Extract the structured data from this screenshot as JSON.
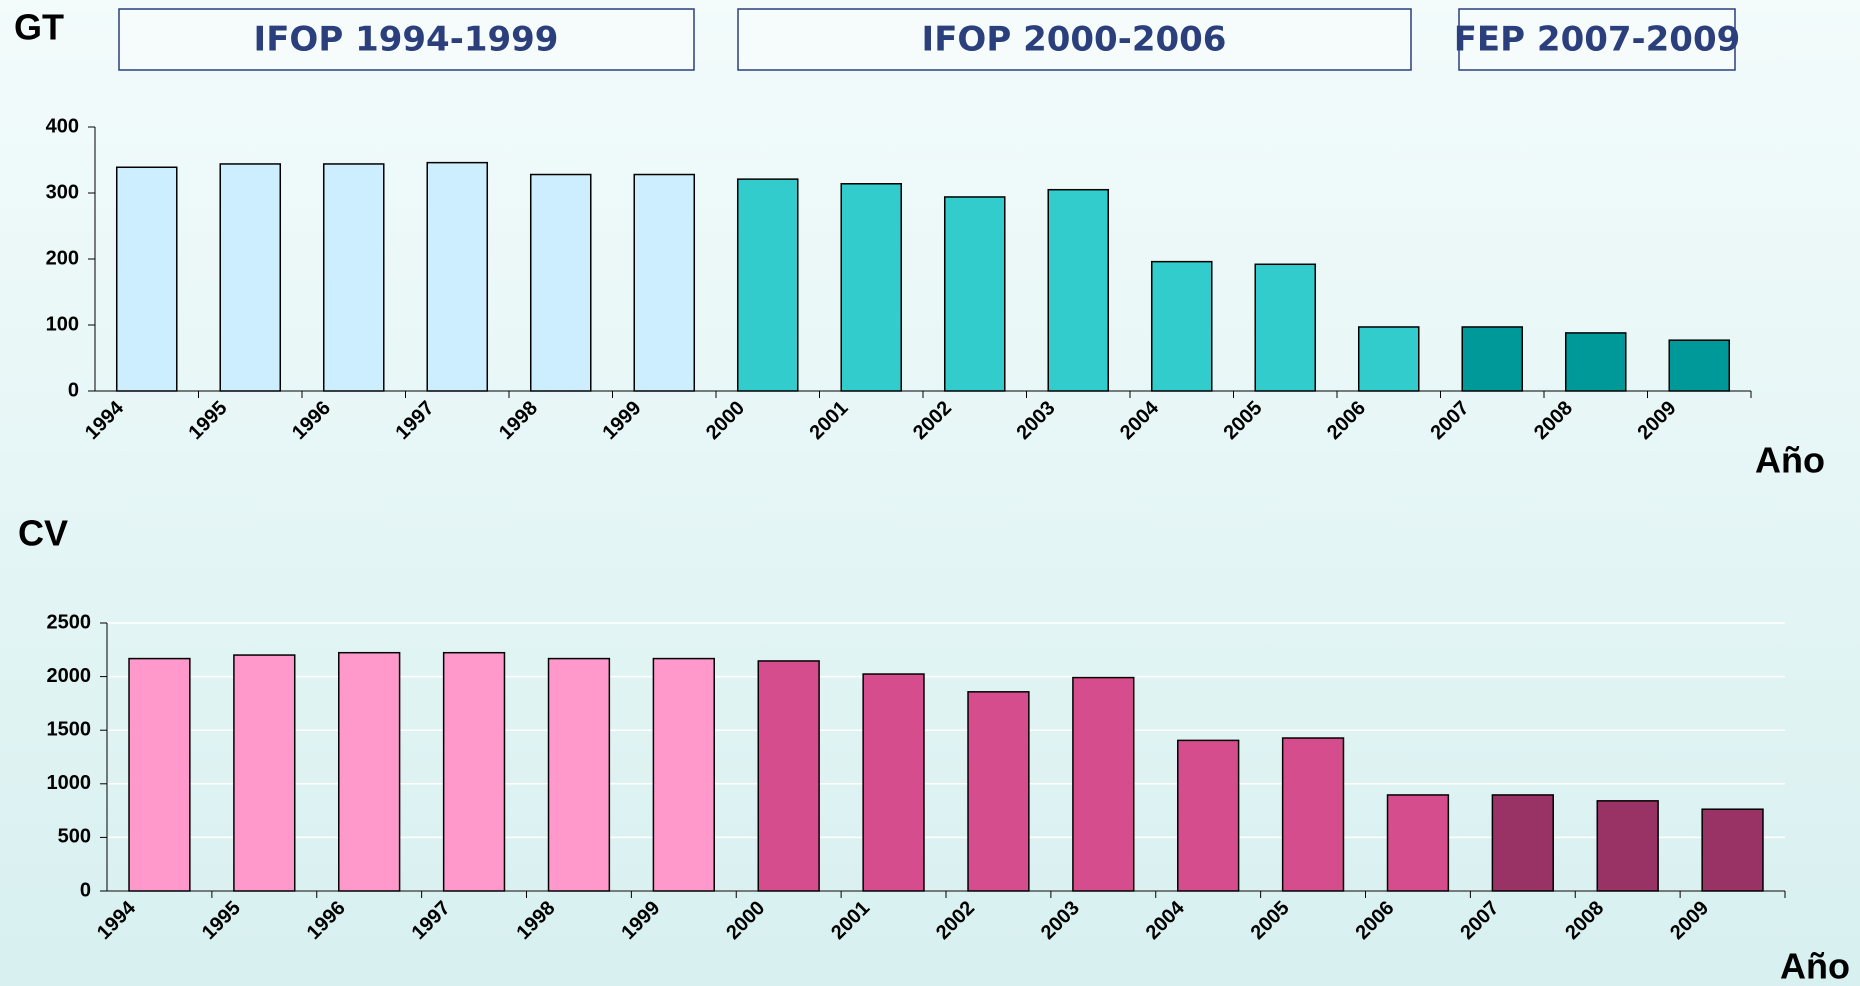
{
  "periods": [
    "IFOP 1994-1999",
    "IFOP 2000-2006",
    "FEP 2007-2009"
  ],
  "chart_data": [
    {
      "type": "bar",
      "ylabel": "GT",
      "xlabel": "Año",
      "categories": [
        "1994",
        "1995",
        "1996",
        "1997",
        "1998",
        "1999",
        "2000",
        "2001",
        "2002",
        "2003",
        "2004",
        "2005",
        "2006",
        "2007",
        "2008",
        "2009"
      ],
      "values": [
        339,
        344,
        344,
        346,
        328,
        328,
        321,
        314,
        294,
        305,
        196,
        192,
        97,
        97,
        88,
        77
      ],
      "colors": [
        "#cceeff",
        "#cceeff",
        "#cceeff",
        "#cceeff",
        "#cceeff",
        "#cceeff",
        "#33cccc",
        "#33cccc",
        "#33cccc",
        "#33cccc",
        "#33cccc",
        "#33cccc",
        "#33cccc",
        "#009999",
        "#009999",
        "#009999"
      ],
      "ylim": [
        0,
        400
      ],
      "yticks": [
        0,
        100,
        200,
        300,
        400
      ],
      "grid": false
    },
    {
      "type": "bar",
      "ylabel": "CV",
      "xlabel": "Año",
      "categories": [
        "1994",
        "1995",
        "1996",
        "1997",
        "1998",
        "1999",
        "2000",
        "2001",
        "2002",
        "2003",
        "2004",
        "2005",
        "2006",
        "2007",
        "2008",
        "2009"
      ],
      "values": [
        2168,
        2201,
        2223,
        2223,
        2168,
        2168,
        2146,
        2024,
        1858,
        1991,
        1405,
        1427,
        896,
        896,
        841,
        763
      ],
      "colors": [
        "#ff99cc",
        "#ff99cc",
        "#ff99cc",
        "#ff99cc",
        "#ff99cc",
        "#ff99cc",
        "#d64d8d",
        "#d64d8d",
        "#d64d8d",
        "#d64d8d",
        "#d64d8d",
        "#d64d8d",
        "#d64d8d",
        "#993366",
        "#993366",
        "#993366"
      ],
      "ylim": [
        0,
        2500
      ],
      "yticks": [
        0,
        500,
        1000,
        1500,
        2000,
        2500
      ],
      "grid": true
    }
  ]
}
